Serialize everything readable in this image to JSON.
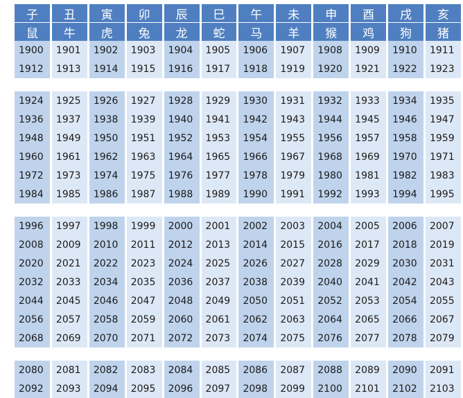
{
  "branches": [
    "子",
    "丑",
    "寅",
    "卯",
    "辰",
    "巳",
    "午",
    "未",
    "申",
    "酉",
    "戌",
    "亥"
  ],
  "animals": [
    "鼠",
    "牛",
    "虎",
    "兔",
    "龙",
    "蛇",
    "马",
    "羊",
    "猴",
    "鸡",
    "狗",
    "猪"
  ],
  "groups": [
    [
      [
        "1900",
        "1901",
        "1902",
        "1903",
        "1904",
        "1905",
        "1906",
        "1907",
        "1908",
        "1909",
        "1910",
        "1911"
      ],
      [
        "1912",
        "1913",
        "1914",
        "1915",
        "1916",
        "1917",
        "1918",
        "1919",
        "1920",
        "1921",
        "1922",
        "1923"
      ]
    ],
    [
      [
        "1924",
        "1925",
        "1926",
        "1927",
        "1928",
        "1929",
        "1930",
        "1931",
        "1932",
        "1933",
        "1934",
        "1935"
      ],
      [
        "1936",
        "1937",
        "1938",
        "1939",
        "1940",
        "1941",
        "1942",
        "1943",
        "1944",
        "1945",
        "1946",
        "1947"
      ],
      [
        "1948",
        "1949",
        "1950",
        "1951",
        "1952",
        "1953",
        "1954",
        "1955",
        "1956",
        "1957",
        "1958",
        "1959"
      ],
      [
        "1960",
        "1961",
        "1962",
        "1963",
        "1964",
        "1965",
        "1966",
        "1967",
        "1968",
        "1969",
        "1970",
        "1971"
      ],
      [
        "1972",
        "1973",
        "1974",
        "1975",
        "1976",
        "1977",
        "1978",
        "1979",
        "1980",
        "1981",
        "1982",
        "1983"
      ],
      [
        "1984",
        "1985",
        "1986",
        "1987",
        "1988",
        "1989",
        "1990",
        "1991",
        "1992",
        "1993",
        "1994",
        "1995"
      ]
    ],
    [
      [
        "1996",
        "1997",
        "1998",
        "1999",
        "2000",
        "2001",
        "2002",
        "2003",
        "2004",
        "2005",
        "2006",
        "2007"
      ],
      [
        "2008",
        "2009",
        "2010",
        "2011",
        "2012",
        "2013",
        "2014",
        "2015",
        "2016",
        "2017",
        "2018",
        "2019"
      ],
      [
        "2020",
        "2021",
        "2022",
        "2023",
        "2024",
        "2025",
        "2026",
        "2027",
        "2028",
        "2029",
        "2030",
        "2031"
      ],
      [
        "2032",
        "2033",
        "2034",
        "2035",
        "2036",
        "2037",
        "2038",
        "2039",
        "2040",
        "2041",
        "2042",
        "2043"
      ],
      [
        "2044",
        "2045",
        "2046",
        "2047",
        "2048",
        "2049",
        "2050",
        "2051",
        "2052",
        "2053",
        "2054",
        "2055"
      ],
      [
        "2056",
        "2057",
        "2058",
        "2059",
        "2060",
        "2061",
        "2062",
        "2063",
        "2064",
        "2065",
        "2066",
        "2067"
      ],
      [
        "2068",
        "2069",
        "2070",
        "2071",
        "2072",
        "2073",
        "2074",
        "2075",
        "2076",
        "2077",
        "2078",
        "2079"
      ]
    ],
    [
      [
        "2080",
        "2081",
        "2082",
        "2083",
        "2084",
        "2085",
        "2086",
        "2087",
        "2088",
        "2089",
        "2090",
        "2091"
      ],
      [
        "2092",
        "2093",
        "2094",
        "2095",
        "2096",
        "2097",
        "2098",
        "2099",
        "2100",
        "2101",
        "2102",
        "2103"
      ]
    ]
  ],
  "colors": {
    "header": "#4f7fc0",
    "cell_dark": "#bfd3ec",
    "cell_light": "#dde8f6"
  }
}
